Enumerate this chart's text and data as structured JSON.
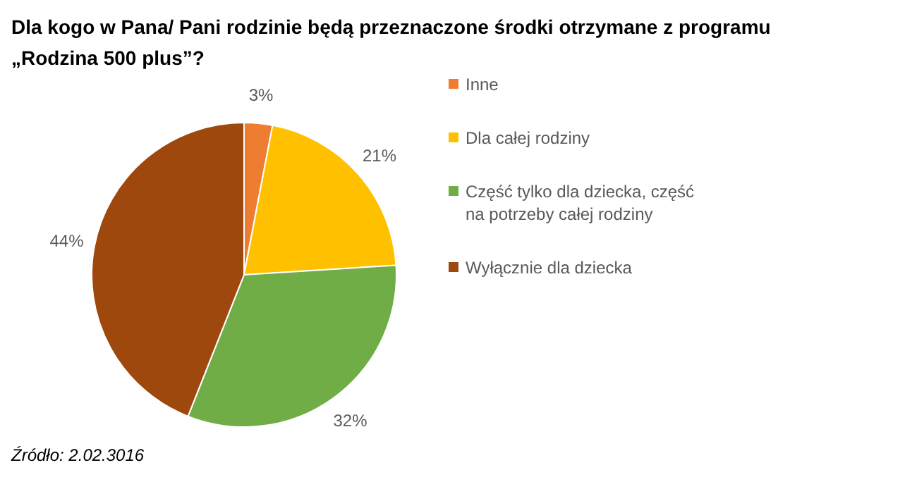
{
  "chart_data": {
    "type": "pie",
    "title": "Dla kogo w Pana/ Pani rodzinie będą przeznaczone środki otrzymane z programu „Rodzina 500 plus”?",
    "categories": [
      "Inne",
      "Dla całej rodziny",
      "Część tylko dla dziecka, część na potrzeby całej rodziny",
      "Wyłącznie dla dziecka"
    ],
    "values": [
      3,
      21,
      32,
      44
    ],
    "colors": [
      "#ed7d31",
      "#ffc000",
      "#70ad47",
      "#9e480e"
    ],
    "value_labels": [
      "3%",
      "21%",
      "32%",
      "44%"
    ],
    "legend": "right",
    "annotations": [
      "Źródło: 2.02.3016"
    ]
  }
}
